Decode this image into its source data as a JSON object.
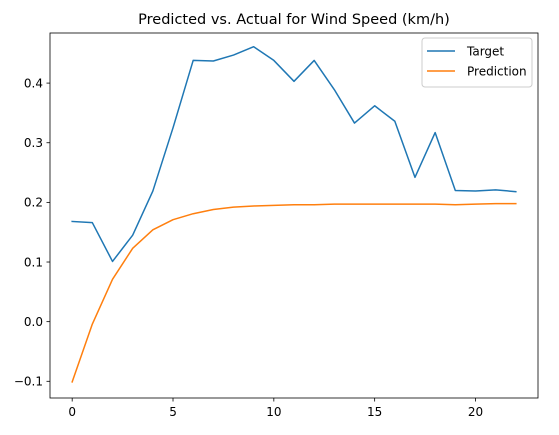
{
  "chart_data": {
    "type": "line",
    "title": "Predicted vs. Actual for Wind Speed (km/h)",
    "xlabel": "",
    "ylabel": "",
    "xlim": [
      -1.1,
      23.1
    ],
    "ylim": [
      -0.128,
      0.484
    ],
    "xticks": [
      0,
      5,
      10,
      15,
      20
    ],
    "yticks": [
      -0.1,
      0.0,
      0.1,
      0.2,
      0.3,
      0.4
    ],
    "ytick_labels": [
      "−0.1",
      "0.0",
      "0.1",
      "0.2",
      "0.3",
      "0.4"
    ],
    "grid": false,
    "legend_position": "upper right",
    "x": [
      0,
      1,
      2,
      3,
      4,
      5,
      6,
      7,
      8,
      9,
      10,
      11,
      12,
      13,
      14,
      15,
      16,
      17,
      18,
      19,
      20,
      21,
      22
    ],
    "series": [
      {
        "name": "Target",
        "color": "#1f77b4",
        "values": [
          0.168,
          0.166,
          0.101,
          0.145,
          0.219,
          0.325,
          0.438,
          0.437,
          0.447,
          0.461,
          0.438,
          0.403,
          0.438,
          0.389,
          0.333,
          0.362,
          0.336,
          0.242,
          0.317,
          0.22,
          0.219,
          0.221,
          0.218
        ]
      },
      {
        "name": "Prediction",
        "color": "#ff7f0e",
        "values": [
          -0.101,
          -0.004,
          0.071,
          0.123,
          0.154,
          0.171,
          0.181,
          0.188,
          0.192,
          0.194,
          0.195,
          0.196,
          0.196,
          0.197,
          0.197,
          0.197,
          0.197,
          0.197,
          0.197,
          0.196,
          0.197,
          0.198,
          0.198
        ]
      }
    ]
  }
}
